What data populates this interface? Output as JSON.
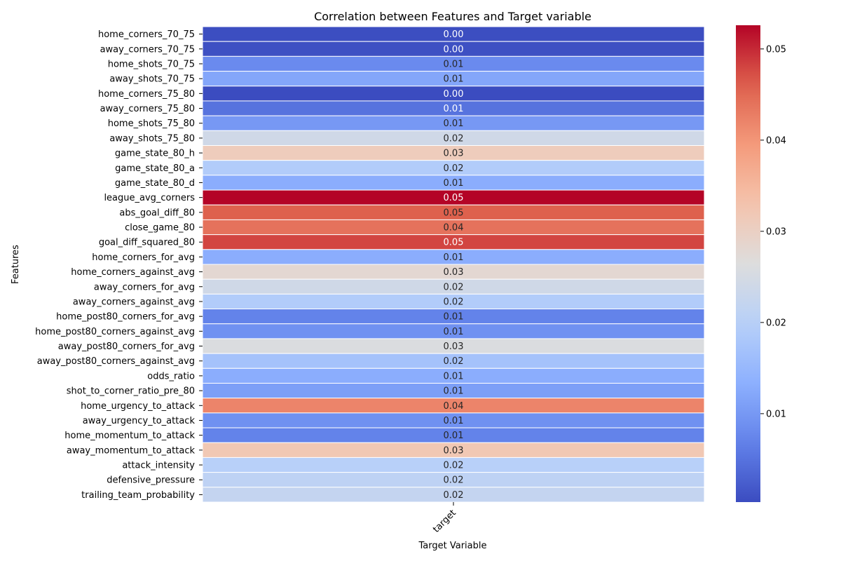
{
  "chart_data": {
    "type": "heatmap",
    "title": "Correlation between Features and Target variable",
    "xlabel": "Target Variable",
    "ylabel": "Features",
    "columns": [
      "target"
    ],
    "rows": [
      {
        "feature": "home_corners_70_75",
        "value": 0.0005,
        "label": "0.00"
      },
      {
        "feature": "away_corners_70_75",
        "value": 0.0008,
        "label": "0.00"
      },
      {
        "feature": "home_shots_70_75",
        "value": 0.008,
        "label": "0.01"
      },
      {
        "feature": "away_shots_70_75",
        "value": 0.012,
        "label": "0.01"
      },
      {
        "feature": "home_corners_75_80",
        "value": 0.0003,
        "label": "0.00"
      },
      {
        "feature": "away_corners_75_80",
        "value": 0.005,
        "label": "0.01"
      },
      {
        "feature": "home_shots_75_80",
        "value": 0.01,
        "label": "0.01"
      },
      {
        "feature": "away_shots_75_80",
        "value": 0.024,
        "label": "0.02"
      },
      {
        "feature": "game_state_80_h",
        "value": 0.031,
        "label": "0.03"
      },
      {
        "feature": "game_state_80_a",
        "value": 0.019,
        "label": "0.02"
      },
      {
        "feature": "game_state_80_d",
        "value": 0.013,
        "label": "0.01"
      },
      {
        "feature": "league_avg_corners",
        "value": 0.0526,
        "label": "0.05"
      },
      {
        "feature": "abs_goal_diff_80",
        "value": 0.046,
        "label": "0.05"
      },
      {
        "feature": "close_game_80",
        "value": 0.044,
        "label": "0.04"
      },
      {
        "feature": "goal_diff_squared_80",
        "value": 0.048,
        "label": "0.05"
      },
      {
        "feature": "home_corners_for_avg",
        "value": 0.013,
        "label": "0.01"
      },
      {
        "feature": "home_corners_against_avg",
        "value": 0.028,
        "label": "0.03"
      },
      {
        "feature": "away_corners_for_avg",
        "value": 0.024,
        "label": "0.02"
      },
      {
        "feature": "away_corners_against_avg",
        "value": 0.019,
        "label": "0.02"
      },
      {
        "feature": "home_post80_corners_for_avg",
        "value": 0.007,
        "label": "0.01"
      },
      {
        "feature": "home_post80_corners_against_avg",
        "value": 0.009,
        "label": "0.01"
      },
      {
        "feature": "away_post80_corners_for_avg",
        "value": 0.026,
        "label": "0.03"
      },
      {
        "feature": "away_post80_corners_against_avg",
        "value": 0.017,
        "label": "0.02"
      },
      {
        "feature": "odds_ratio",
        "value": 0.013,
        "label": "0.01"
      },
      {
        "feature": "shot_to_corner_ratio_pre_80",
        "value": 0.011,
        "label": "0.01"
      },
      {
        "feature": "home_urgency_to_attack",
        "value": 0.042,
        "label": "0.04"
      },
      {
        "feature": "away_urgency_to_attack",
        "value": 0.009,
        "label": "0.01"
      },
      {
        "feature": "home_momentum_to_attack",
        "value": 0.007,
        "label": "0.01"
      },
      {
        "feature": "away_momentum_to_attack",
        "value": 0.032,
        "label": "0.03"
      },
      {
        "feature": "attack_intensity",
        "value": 0.02,
        "label": "0.02"
      },
      {
        "feature": "defensive_pressure",
        "value": 0.021,
        "label": "0.02"
      },
      {
        "feature": "trailing_team_probability",
        "value": 0.022,
        "label": "0.02"
      }
    ],
    "colorbar": {
      "colormap": "coolwarm",
      "vmin": 0.0003,
      "vmax": 0.0526,
      "ticks": [
        0.01,
        0.02,
        0.03,
        0.04,
        0.05
      ],
      "tick_labels": [
        "0.01",
        "0.02",
        "0.03",
        "0.04",
        "0.05"
      ]
    },
    "annotations": true,
    "grid": false
  }
}
